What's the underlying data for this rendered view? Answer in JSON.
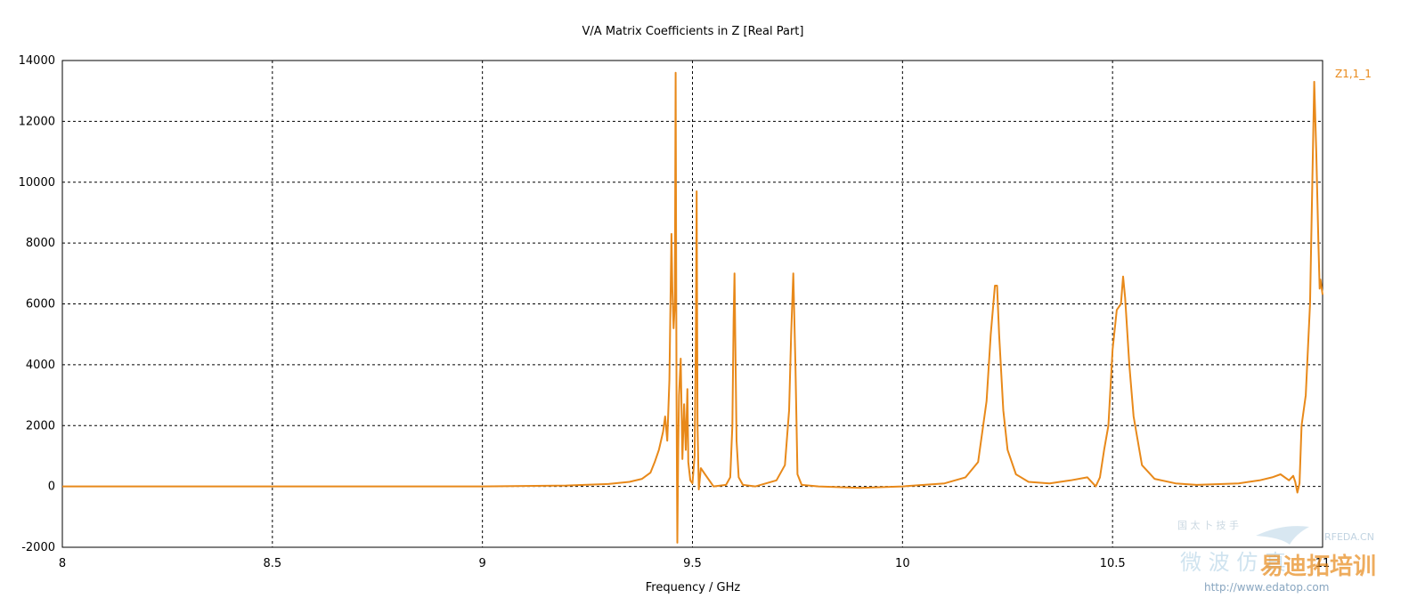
{
  "chart_data": {
    "type": "line",
    "title": "V/A Matrix Coefficients in Z [Real Part]",
    "xlabel": "Frequency / GHz",
    "ylabel": "",
    "xlim": [
      8,
      11
    ],
    "ylim": [
      -2000,
      14000
    ],
    "x_ticks": [
      8,
      8.5,
      9,
      9.5,
      10,
      10.5,
      11
    ],
    "x_tick_labels": [
      "8",
      "8.5",
      "9",
      "9.5",
      "10",
      "10.5",
      "11"
    ],
    "y_ticks": [
      -2000,
      0,
      2000,
      4000,
      6000,
      8000,
      10000,
      12000,
      14000
    ],
    "y_tick_labels": [
      "-2000",
      "0",
      "2000",
      "4000",
      "6000",
      "8000",
      "10000",
      "12000",
      "14000"
    ],
    "grid": true,
    "legend_position": "top-right",
    "series": [
      {
        "name": "Z1,1_1",
        "color": "#e8891a",
        "x": [
          8.0,
          8.5,
          9.0,
          9.2,
          9.3,
          9.35,
          9.38,
          9.4,
          9.41,
          9.42,
          9.43,
          9.435,
          9.44,
          9.445,
          9.45,
          9.452,
          9.455,
          9.458,
          9.46,
          9.462,
          9.464,
          9.466,
          9.468,
          9.472,
          9.476,
          9.48,
          9.484,
          9.488,
          9.49,
          9.495,
          9.5,
          9.505,
          9.508,
          9.51,
          9.512,
          9.515,
          9.52,
          9.53,
          9.55,
          9.58,
          9.59,
          9.595,
          9.598,
          9.6,
          9.602,
          9.605,
          9.61,
          9.62,
          9.65,
          9.7,
          9.72,
          9.73,
          9.735,
          9.74,
          9.745,
          9.75,
          9.76,
          9.8,
          9.9,
          10.0,
          10.1,
          10.15,
          10.18,
          10.2,
          10.21,
          10.22,
          10.225,
          10.23,
          10.24,
          10.25,
          10.27,
          10.3,
          10.35,
          10.4,
          10.44,
          10.46,
          10.47,
          10.48,
          10.49,
          10.5,
          10.51,
          10.52,
          10.525,
          10.53,
          10.54,
          10.55,
          10.57,
          10.6,
          10.65,
          10.7,
          10.8,
          10.85,
          10.88,
          10.9,
          10.92,
          10.93,
          10.935,
          10.94,
          10.945,
          10.95,
          10.96,
          10.97,
          10.98,
          10.985,
          10.99,
          10.993,
          10.995,
          10.997,
          11.0
        ],
        "y": [
          0,
          0,
          0,
          30,
          80,
          150,
          250,
          450,
          800,
          1200,
          1800,
          2300,
          1500,
          3500,
          8300,
          6500,
          5200,
          6000,
          13600,
          3000,
          -1850,
          1200,
          3000,
          4200,
          900,
          2700,
          1200,
          3200,
          800,
          200,
          100,
          1000,
          4800,
          9700,
          2000,
          -100,
          600,
          400,
          0,
          50,
          300,
          2000,
          5500,
          7000,
          4800,
          1500,
          300,
          50,
          0,
          200,
          700,
          2500,
          5000,
          7000,
          4000,
          400,
          50,
          0,
          -50,
          0,
          100,
          300,
          800,
          2800,
          5000,
          6600,
          6600,
          5000,
          2500,
          1200,
          400,
          150,
          100,
          200,
          300,
          0,
          300,
          1200,
          2000,
          4500,
          5800,
          6000,
          6900,
          6200,
          4000,
          2300,
          700,
          250,
          100,
          50,
          100,
          200,
          300,
          400,
          200,
          350,
          150,
          -200,
          100,
          2000,
          3000,
          6000,
          13300,
          11000,
          8000,
          6500,
          6800,
          6600,
          6300
        ]
      }
    ]
  },
  "watermark": {
    "brand": "RFEDA.CN",
    "cn_small": "国 太 卜 技 手",
    "cn_left": "微 波 仿 真",
    "cn_right": "易迪拓培训",
    "url": "http://www.edatop.com"
  }
}
